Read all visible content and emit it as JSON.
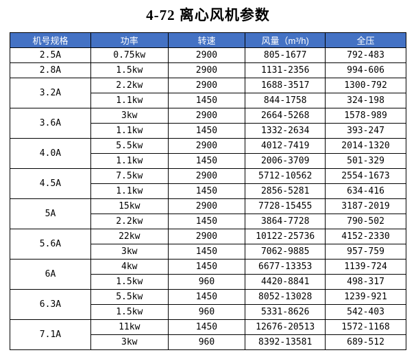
{
  "title": "4-72 离心风机参数",
  "table": {
    "header_bg": "#4472c4",
    "header_fg": "#ffffff",
    "columns": [
      "机号规格",
      "功率",
      "转速",
      "风量（m³/h)",
      "全压"
    ],
    "groups": [
      {
        "model": "2.5A",
        "rows": [
          [
            "0.75kw",
            "2900",
            "805-1677",
            "792-483"
          ]
        ]
      },
      {
        "model": "2.8A",
        "rows": [
          [
            "1.5kw",
            "2900",
            "1131-2356",
            "994-606"
          ]
        ]
      },
      {
        "model": "3.2A",
        "rows": [
          [
            "2.2kw",
            "2900",
            "1688-3517",
            "1300-792"
          ],
          [
            "1.1kw",
            "1450",
            "844-1758",
            "324-198"
          ]
        ]
      },
      {
        "model": "3.6A",
        "rows": [
          [
            "3kw",
            "2900",
            "2664-5268",
            "1578-989"
          ],
          [
            "1.1kw",
            "1450",
            "1332-2634",
            "393-247"
          ]
        ]
      },
      {
        "model": "4.0A",
        "rows": [
          [
            "5.5kw",
            "2900",
            "4012-7419",
            "2014-1320"
          ],
          [
            "1.1kw",
            "1450",
            "2006-3709",
            "501-329"
          ]
        ]
      },
      {
        "model": "4.5A",
        "rows": [
          [
            "7.5kw",
            "2900",
            "5712-10562",
            "2554-1673"
          ],
          [
            "1.1kw",
            "1450",
            "2856-5281",
            "634-416"
          ]
        ]
      },
      {
        "model": "5A",
        "rows": [
          [
            "15kw",
            "2900",
            "7728-15455",
            "3187-2019"
          ],
          [
            "2.2kw",
            "1450",
            "3864-7728",
            "790-502"
          ]
        ]
      },
      {
        "model": "5.6A",
        "rows": [
          [
            "22kw",
            "2900",
            "10122-25736",
            "4152-2330"
          ],
          [
            "3kw",
            "1450",
            "7062-9885",
            "957-759"
          ]
        ]
      },
      {
        "model": "6A",
        "rows": [
          [
            "4kw",
            "1450",
            "6677-13353",
            "1139-724"
          ],
          [
            "1.5kw",
            "960",
            "4420-8841",
            "498-317"
          ]
        ]
      },
      {
        "model": "6.3A",
        "rows": [
          [
            "5.5kw",
            "1450",
            "8052-13028",
            "1239-921"
          ],
          [
            "1.5kw",
            "960",
            "5331-8626",
            "542-403"
          ]
        ]
      },
      {
        "model": "7.1A",
        "rows": [
          [
            "11kw",
            "1450",
            "12676-20513",
            "1572-1168"
          ],
          [
            "3kw",
            "960",
            "8392-13581",
            "689-512"
          ]
        ]
      }
    ]
  }
}
